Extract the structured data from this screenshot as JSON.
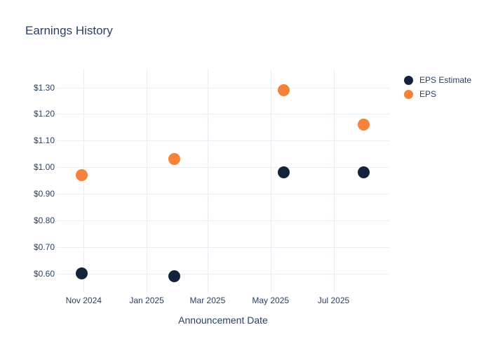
{
  "colors": {
    "background": "#ffffff",
    "text": "#2a3f5f",
    "grid": "#e9edf4",
    "eps_estimate": "#13233b",
    "eps": "#f5813b"
  },
  "chart_data": {
    "type": "scatter",
    "title": "Earnings History",
    "xlabel": "Announcement Date",
    "ylabel": "",
    "grid": true,
    "legend_position": "top-right",
    "xlim": [
      "2024-10-06",
      "2025-08-24"
    ],
    "ylim": [
      0.53,
      1.37
    ],
    "x_ticks": [
      {
        "date": "2024-11-01",
        "label": "Nov 2024"
      },
      {
        "date": "2025-01-01",
        "label": "Jan 2025"
      },
      {
        "date": "2025-03-01",
        "label": "Mar 2025"
      },
      {
        "date": "2025-05-01",
        "label": "May 2025"
      },
      {
        "date": "2025-07-01",
        "label": "Jul 2025"
      }
    ],
    "y_ticks": [
      {
        "value": 1.3,
        "label": "$1.30"
      },
      {
        "value": 1.2,
        "label": "$1.20"
      },
      {
        "value": 1.1,
        "label": "$1.10"
      },
      {
        "value": 1.0,
        "label": "$1.00"
      },
      {
        "value": 0.9,
        "label": "$0.90"
      },
      {
        "value": 0.8,
        "label": "$0.80"
      },
      {
        "value": 0.7,
        "label": "$0.70"
      },
      {
        "value": 0.6,
        "label": "$0.60"
      }
    ],
    "series": [
      {
        "name": "EPS Estimate",
        "color": "#13233b",
        "points": [
          {
            "date": "2024-10-30",
            "value": 0.6
          },
          {
            "date": "2025-01-28",
            "value": 0.59
          },
          {
            "date": "2025-05-14",
            "value": 0.98
          },
          {
            "date": "2025-07-30",
            "value": 0.98
          }
        ]
      },
      {
        "name": "EPS",
        "color": "#f5813b",
        "points": [
          {
            "date": "2024-10-30",
            "value": 0.97
          },
          {
            "date": "2025-01-28",
            "value": 1.03
          },
          {
            "date": "2025-05-14",
            "value": 1.29
          },
          {
            "date": "2025-07-30",
            "value": 1.16
          }
        ]
      }
    ]
  }
}
